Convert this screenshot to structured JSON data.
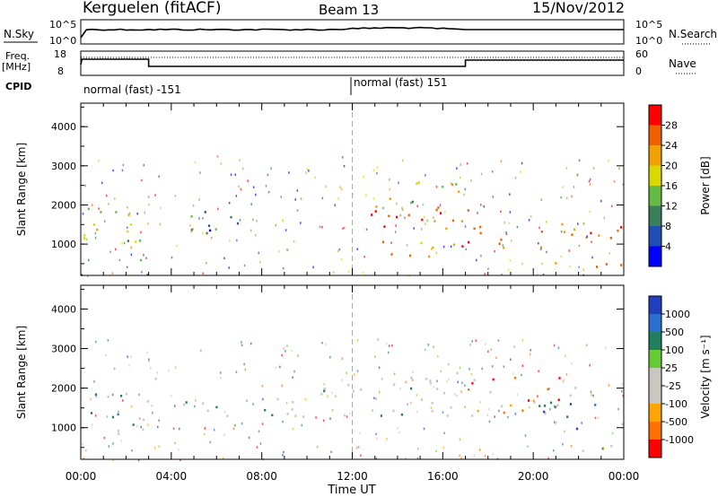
{
  "header": {
    "station": "Kerguelen (fitACF)",
    "beam": "Beam 13",
    "date": "15/Nov/2012"
  },
  "status_panels": {
    "nsky_label": "N.Sky",
    "nsearch_label": "N.Search",
    "freq_label_1": "Freq.",
    "freq_label_2": "[MHz]",
    "nave_label": "Nave",
    "cpid_label": "CPID",
    "left_ticks_top": [
      "10^5",
      "10^0"
    ],
    "right_ticks_top": [
      "10^5",
      "10^0"
    ],
    "left_ticks_freq": [
      "18",
      "8"
    ],
    "right_ticks_nave": [
      "60",
      "0"
    ],
    "cpid_segments": [
      "normal (fast) -151",
      "normal (fast) 151"
    ]
  },
  "x_axis": {
    "label": "Time UT",
    "ticks": [
      "00:00",
      "04:00",
      "08:00",
      "12:00",
      "16:00",
      "20:00",
      "00:00"
    ]
  },
  "chart_data": [
    {
      "type": "heatmap",
      "title": "",
      "ylabel": "Slant Range [km]",
      "y_ticks": [
        "1000",
        "2000",
        "3000",
        "4000"
      ],
      "ylim": [
        200,
        4600
      ],
      "xlim_hours": [
        0,
        24
      ],
      "colorbar_label": "Power [dB]",
      "colorbar_ticks": [
        "4",
        "8",
        "12",
        "16",
        "20",
        "24",
        "28"
      ],
      "colorbar_colors": [
        "#0000ff",
        "#1f4fb5",
        "#3a7f5a",
        "#66bb44",
        "#d9d900",
        "#f0a000",
        "#f06000",
        "#ff0000"
      ],
      "regions": [
        {
          "t0": 0.1,
          "t1": 2.5,
          "r0": 900,
          "r1": 2000,
          "level": 0.55
        },
        {
          "t0": 1.8,
          "t1": 3.0,
          "r0": 500,
          "r1": 1400,
          "level": 0.35
        },
        {
          "t0": 4.5,
          "t1": 7.5,
          "r0": 1300,
          "r1": 2100,
          "level": 0.2
        },
        {
          "t0": 11.5,
          "t1": 17.5,
          "r0": 1400,
          "r1": 2200,
          "level": 0.85
        },
        {
          "t0": 12.0,
          "t1": 16.5,
          "r0": 700,
          "r1": 1100,
          "level": 0.7
        },
        {
          "t0": 14.0,
          "t1": 16.8,
          "r0": 2000,
          "r1": 2700,
          "level": 0.5
        },
        {
          "t0": 16.8,
          "t1": 23.9,
          "r0": 900,
          "r1": 1600,
          "level": 0.85
        },
        {
          "t0": 20.5,
          "t1": 23.9,
          "r0": 300,
          "r1": 600,
          "level": 0.75
        }
      ]
    },
    {
      "type": "heatmap",
      "title": "",
      "ylabel": "Slant Range [km]",
      "y_ticks": [
        "1000",
        "2000",
        "3000",
        "4000"
      ],
      "ylim": [
        200,
        4600
      ],
      "xlim_hours": [
        0,
        24
      ],
      "colorbar_label": "Velocity [m s⁻¹]",
      "colorbar_ticks": [
        "1000",
        "500",
        "100",
        "25",
        "-25",
        "-100",
        "-500",
        "-1000"
      ],
      "colorbar_colors": [
        "#1f3fbf",
        "#2a6fd0",
        "#1f7f5f",
        "#66cc33",
        "#c8c8c0",
        "#c8c8c0",
        "#ffa500",
        "#ff7000",
        "#ff0000"
      ],
      "regions": [
        {
          "t0": 0.1,
          "t1": 2.0,
          "r0": 1000,
          "r1": 1900,
          "level": "neg"
        },
        {
          "t0": 1.5,
          "t1": 3.0,
          "r0": 800,
          "r1": 2000,
          "level": "zero"
        },
        {
          "t0": 4.5,
          "t1": 10.5,
          "r0": 1300,
          "r1": 1900,
          "level": "zero"
        },
        {
          "t0": 10.5,
          "t1": 16.5,
          "r0": 1300,
          "r1": 2200,
          "level": "zero"
        },
        {
          "t0": 14.0,
          "t1": 17.0,
          "r0": 2000,
          "r1": 2600,
          "level": "zero"
        },
        {
          "t0": 16.5,
          "t1": 22.0,
          "r0": 1300,
          "r1": 2300,
          "level": "pos"
        },
        {
          "t0": 20.0,
          "t1": 23.9,
          "r0": 1000,
          "r1": 1700,
          "level": "neg"
        },
        {
          "t0": 21.0,
          "t1": 23.9,
          "r0": 300,
          "r1": 600,
          "level": "zero"
        }
      ]
    }
  ]
}
